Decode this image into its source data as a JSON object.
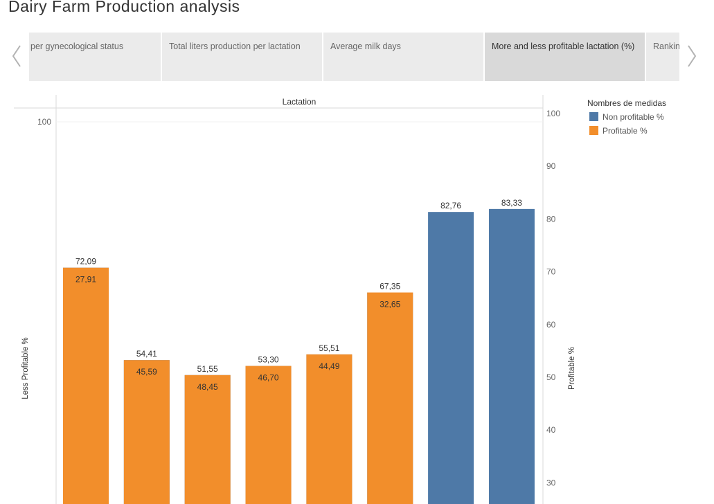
{
  "header": {
    "title": "Dairy Farm Production analysis"
  },
  "tabs": [
    {
      "label": "per gynecological status",
      "active": false
    },
    {
      "label": "Total liters production per lactation",
      "active": false
    },
    {
      "label": "Average milk days",
      "active": false
    },
    {
      "label": "More and less profitable lactation (%)",
      "active": true
    },
    {
      "label": "Rankin",
      "active": false
    }
  ],
  "nav": {
    "prev_icon": "chevron-left-icon",
    "next_icon": "chevron-right-icon"
  },
  "legend": {
    "title": "Nombres de medidas",
    "items": [
      {
        "label": "Non profitable %",
        "color": "#4e79a7"
      },
      {
        "label": "Profitable %",
        "color": "#f28e2b"
      }
    ]
  },
  "chart_data": {
    "type": "bar",
    "stacked_overlay": true,
    "header": "Lactation",
    "ylabel_left": "Less Profitable %",
    "ylabel_right": "Profitable %",
    "left_ticks": [
      "100"
    ],
    "right_ticks": [
      "100",
      "90",
      "80",
      "70",
      "60",
      "50",
      "40",
      "30"
    ],
    "series": [
      {
        "name": "Non profitable %",
        "color": "#4e79a7",
        "values": [
          72.09,
          54.41,
          51.55,
          53.3,
          55.51,
          67.35,
          82.76,
          83.33
        ],
        "labels": [
          "72,09",
          "54,41",
          "51,55",
          "53,30",
          "55,51",
          "67,35",
          "82,76",
          "83,33"
        ]
      },
      {
        "name": "Profitable %",
        "color": "#f28e2b",
        "values": [
          27.91,
          45.59,
          48.45,
          46.7,
          44.49,
          32.65,
          null,
          null
        ],
        "labels": [
          "27,91",
          "45,59",
          "48,45",
          "46,70",
          "44,49",
          "32,65",
          "",
          ""
        ]
      }
    ]
  }
}
